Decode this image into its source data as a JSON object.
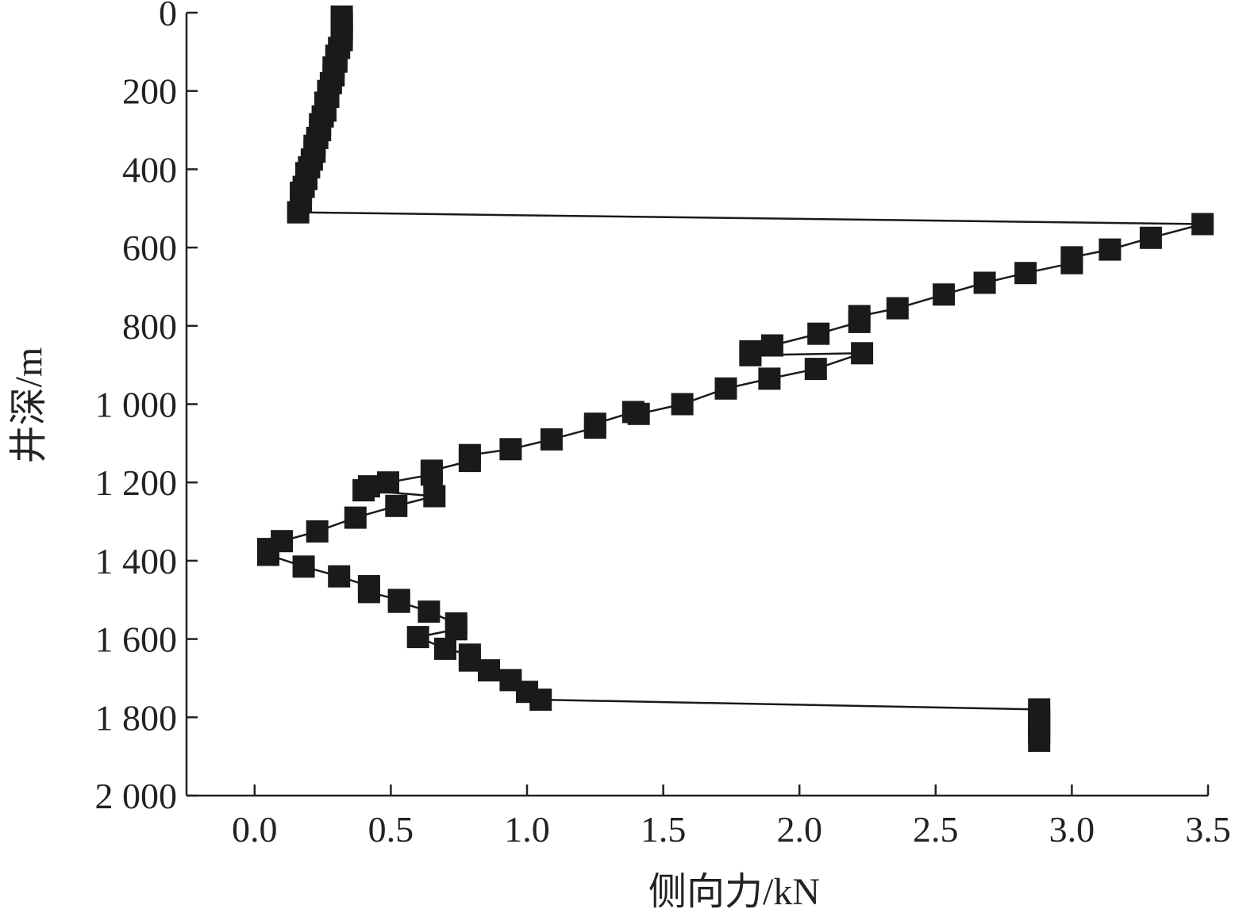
{
  "chart_data": {
    "type": "scatter",
    "title": "",
    "xlabel": "侧向力/kN",
    "ylabel": "井深/m",
    "xlim": [
      -0.25,
      3.5
    ],
    "ylim": [
      0,
      2000
    ],
    "y_inverted": true,
    "grid": false,
    "xticks": [
      0.0,
      0.5,
      1.0,
      1.5,
      2.0,
      2.5,
      3.0,
      3.5
    ],
    "xtick_labels": [
      "0.0",
      "0.5",
      "1.0",
      "1.5",
      "2.0",
      "2.5",
      "3.0",
      "3.5"
    ],
    "yticks": [
      0,
      200,
      400,
      600,
      800,
      1000,
      1200,
      1400,
      1600,
      1800,
      2000
    ],
    "ytick_labels": [
      "0",
      "200",
      "400",
      "600",
      "800",
      "1 000",
      "1 200",
      "1 400",
      "1 600",
      "1 800",
      "2 000"
    ],
    "marker": "square",
    "color": "#1a1a1a",
    "series": [
      {
        "x": [
          0.32,
          0.32,
          0.32,
          0.32,
          0.32,
          0.32,
          0.31,
          0.3,
          0.3,
          0.29,
          0.29,
          0.28,
          0.27,
          0.27,
          0.26,
          0.26,
          0.25,
          0.24,
          0.24,
          0.23,
          0.22,
          0.22,
          0.21,
          0.2,
          0.19,
          0.19,
          0.18,
          0.17,
          0.17,
          0.16,
          3.48,
          3.29,
          3.14,
          3.0,
          3.0,
          2.83,
          2.68,
          2.53,
          2.36,
          2.22,
          2.22,
          2.07,
          1.9,
          1.82,
          1.82,
          2.23,
          2.06,
          1.89,
          1.73,
          1.57,
          1.41,
          1.39,
          1.25,
          1.25,
          1.09,
          0.94,
          0.79,
          0.79,
          0.65,
          0.65,
          0.49,
          0.42,
          0.4,
          0.66,
          0.52,
          0.37,
          0.23,
          0.1,
          0.05,
          0.05,
          0.18,
          0.31,
          0.42,
          0.42,
          0.53,
          0.53,
          0.64,
          0.74,
          0.74,
          0.6,
          0.7,
          0.79,
          0.79,
          0.86,
          0.94,
          1.0,
          1.05,
          2.88,
          2.88,
          2.88,
          2.88,
          2.88
        ],
        "y": [
          10,
          20,
          30,
          40,
          55,
          70,
          90,
          110,
          125,
          140,
          160,
          180,
          200,
          215,
          230,
          250,
          265,
          285,
          300,
          320,
          340,
          355,
          375,
          395,
          410,
          425,
          445,
          460,
          480,
          510,
          540,
          575,
          605,
          625,
          640,
          665,
          690,
          720,
          755,
          775,
          790,
          820,
          850,
          865,
          875,
          870,
          910,
          935,
          960,
          1000,
          1025,
          1020,
          1050,
          1060,
          1090,
          1115,
          1130,
          1145,
          1170,
          1180,
          1200,
          1210,
          1220,
          1235,
          1260,
          1290,
          1325,
          1350,
          1370,
          1385,
          1415,
          1440,
          1465,
          1480,
          1500,
          1505,
          1530,
          1560,
          1575,
          1595,
          1625,
          1640,
          1655,
          1680,
          1705,
          1735,
          1755,
          1780,
          1800,
          1820,
          1840,
          1860
        ]
      }
    ]
  }
}
